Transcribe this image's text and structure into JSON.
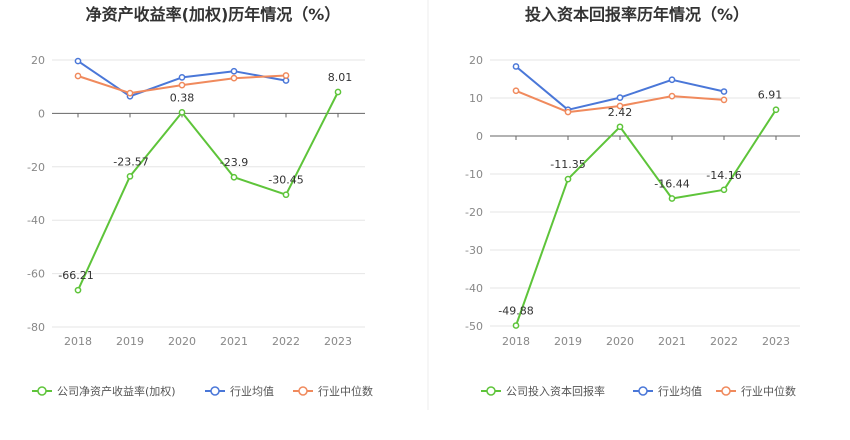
{
  "chart_data": [
    {
      "type": "line",
      "title": "净资产收益率(加权)历年情况（%）",
      "categories": [
        "2018",
        "2019",
        "2020",
        "2021",
        "2022",
        "2023"
      ],
      "ylim": [
        -80,
        20
      ],
      "yticks": [
        20,
        0,
        -20,
        -40,
        -60,
        -80
      ],
      "series": [
        {
          "name": "公司净资产收益率(加权)",
          "color": "#5ec43a",
          "values": [
            -66.21,
            -23.57,
            0.38,
            -23.9,
            -30.45,
            8.01
          ],
          "labels": [
            "-66.21",
            "-23.57",
            "0.38",
            "-23.9",
            "-30.45",
            "8.01"
          ]
        },
        {
          "name": "行业均值",
          "color": "#4a77d8",
          "values": [
            19.6,
            6.4,
            13.5,
            15.8,
            12.3,
            null
          ]
        },
        {
          "name": "行业中位数",
          "color": "#f08a5d",
          "values": [
            14.0,
            7.6,
            10.6,
            13.2,
            14.2,
            null
          ]
        }
      ]
    },
    {
      "type": "line",
      "title": "投入资本回报率历年情况（%）",
      "categories": [
        "2018",
        "2019",
        "2020",
        "2021",
        "2022",
        "2023"
      ],
      "ylim": [
        -50,
        20
      ],
      "yticks": [
        20,
        10,
        0,
        -10,
        -20,
        -30,
        -40,
        -50
      ],
      "series": [
        {
          "name": "公司投入资本回报率",
          "color": "#5ec43a",
          "values": [
            -49.88,
            -11.35,
            2.42,
            -16.44,
            -14.16,
            6.91
          ],
          "labels": [
            "-49.88",
            "-11.35",
            "2.42",
            "-16.44",
            "-14.16",
            "6.91"
          ]
        },
        {
          "name": "行业均值",
          "color": "#4a77d8",
          "values": [
            18.3,
            6.9,
            10.1,
            14.8,
            11.7,
            null
          ]
        },
        {
          "name": "行业中位数",
          "color": "#f08a5d",
          "values": [
            11.9,
            6.3,
            7.9,
            10.5,
            9.5,
            null
          ]
        }
      ]
    }
  ]
}
